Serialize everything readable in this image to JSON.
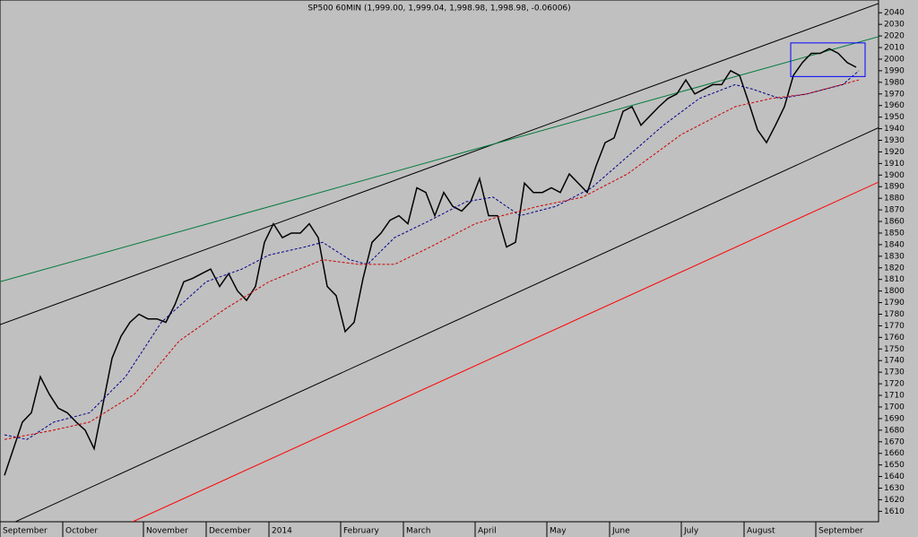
{
  "chart_data": {
    "type": "line",
    "title": "SP500 60MIN (1,999.00, 1,999.04, 1,998.98, 1,998.98, -0.06006)",
    "categories": [
      "September",
      null,
      null,
      null,
      null,
      null,
      null,
      "October",
      null,
      null,
      null,
      null,
      null,
      null,
      null,
      null,
      "November",
      null,
      null,
      null,
      null,
      null,
      null,
      "December",
      null,
      null,
      null,
      null,
      null,
      null,
      "2014",
      null,
      null,
      null,
      null,
      null,
      null,
      null,
      "February",
      null,
      null,
      null,
      null,
      null,
      null,
      "March",
      null,
      null,
      null,
      null,
      null,
      null,
      null,
      "April",
      null,
      null,
      null,
      null,
      null,
      null,
      null,
      "May",
      null,
      null,
      null,
      null,
      null,
      null,
      "June",
      null,
      null,
      null,
      null,
      null,
      null,
      null,
      "July",
      null,
      null,
      null,
      null,
      null,
      null,
      "August",
      null,
      null,
      null,
      null,
      null,
      null,
      null,
      "September",
      null,
      null,
      null,
      null
    ],
    "xlim": [
      -0.5,
      97.5
    ],
    "ylim": [
      1601,
      2051
    ],
    "yticks": [
      1610,
      1620,
      1630,
      1640,
      1650,
      1660,
      1670,
      1680,
      1690,
      1700,
      1710,
      1720,
      1730,
      1740,
      1750,
      1760,
      1770,
      1780,
      1790,
      1800,
      1810,
      1820,
      1830,
      1840,
      1850,
      1860,
      1870,
      1880,
      1890,
      1900,
      1910,
      1920,
      1930,
      1940,
      1950,
      1960,
      1970,
      1980,
      1990,
      2000,
      2010,
      2020,
      2030,
      2040
    ],
    "series": [
      {
        "color": "#000000",
        "values": [
          1641,
          1664,
          1687,
          1695,
          1726,
          1711,
          1699,
          1695,
          1687,
          1680,
          1664,
          1703,
          1742,
          1761,
          1773,
          1780,
          1776,
          1776,
          1773,
          1788,
          1808,
          1811,
          1815,
          1819,
          1804,
          1815,
          1800,
          1792,
          1804,
          1842,
          1858,
          1846,
          1850,
          1850,
          1858,
          1846,
          1804,
          1796,
          1765,
          1773,
          1811,
          1842,
          1850,
          1861,
          1865,
          1858,
          1889,
          1885,
          1865,
          1885,
          1873,
          1869,
          1877,
          1897,
          1865,
          1865,
          1838,
          1842,
          1893,
          1885,
          1885,
          1889,
          1885,
          1901,
          1893,
          1885,
          1908,
          1928,
          1932,
          1955,
          1959,
          1943,
          1951,
          1959,
          1966,
          1970,
          1982,
          1970,
          1974,
          1978,
          1978,
          1990,
          1986,
          1963,
          1939,
          1928,
          1943,
          1959,
          1986,
          1997,
          2005,
          2005,
          2009,
          2005,
          1997,
          1993
        ]
      },
      {
        "color": "#00008b",
        "dashed": true,
        "x": [
          0,
          2.5,
          5.5,
          9.5,
          13.5,
          17.5,
          22.5,
          26.5,
          29.5,
          33.5,
          35.5,
          38.5,
          40.5,
          43.5,
          47.5,
          51.5,
          54.5,
          57.5,
          61.5,
          65.5,
          69.5,
          73.5,
          77.5,
          81.5,
          83.5,
          86.5,
          89.5,
          93.5,
          95.3
        ],
        "values": [
          1676,
          1672,
          1687,
          1695,
          1726,
          1773,
          1808,
          1819,
          1831,
          1838,
          1842,
          1827,
          1823,
          1846,
          1861,
          1877,
          1881,
          1865,
          1873,
          1889,
          1916,
          1943,
          1966,
          1978,
          1974,
          1966,
          1970,
          1978,
          1990
        ]
      },
      {
        "color": "#cc0000",
        "dashed": true,
        "x": [
          0,
          5.5,
          9.5,
          14.5,
          19.5,
          24.5,
          29.5,
          35.5,
          39.5,
          43.5,
          47.5,
          52.5,
          55.5,
          59.5,
          64.5,
          69.5,
          75.5,
          81.5,
          85.5,
          89.5,
          95.3
        ],
        "values": [
          1672,
          1680,
          1687,
          1711,
          1757,
          1784,
          1808,
          1827,
          1823,
          1823,
          1838,
          1858,
          1865,
          1873,
          1881,
          1901,
          1935,
          1959,
          1966,
          1970,
          1982
        ]
      }
    ],
    "trendlines": [
      {
        "color": "#000000",
        "x": [
          -0.5,
          97.5
        ],
        "values": [
          1771,
          2048
        ]
      },
      {
        "color": "#007a3d",
        "x": [
          -0.5,
          101.5
        ],
        "values": [
          1808,
          2028
        ]
      },
      {
        "color": "#000000",
        "x": [
          -0.5,
          101.5
        ],
        "values": [
          1595,
          1955
        ]
      },
      {
        "color": "#ff0000",
        "x": [
          14.3,
          101.5
        ],
        "values": [
          1601,
          1908
        ]
      }
    ],
    "box": {
      "color": "#0000ff",
      "x": [
        87.7,
        96
      ],
      "values": [
        1985,
        2014
      ]
    }
  }
}
